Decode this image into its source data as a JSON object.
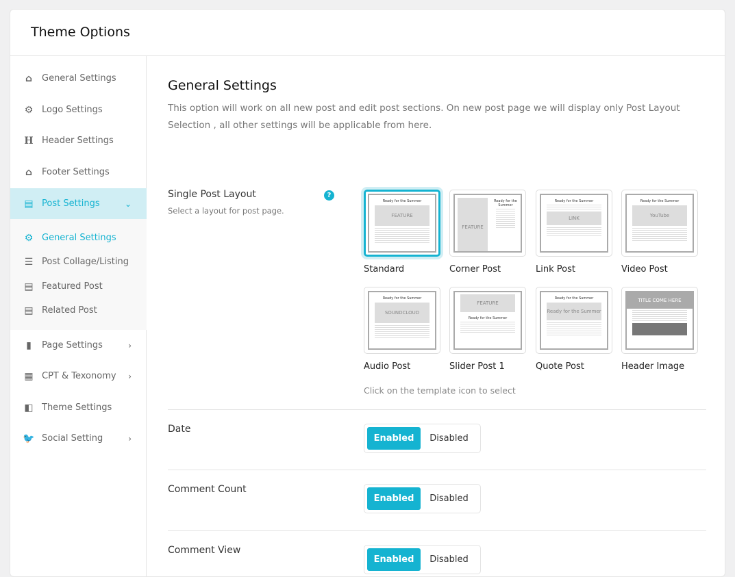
{
  "header": {
    "title": "Theme Options"
  },
  "sidebar": {
    "items": [
      {
        "label": "General Settings",
        "icon": "home-icon"
      },
      {
        "label": "Logo Settings",
        "icon": "cogs-icon"
      },
      {
        "label": "Header Settings",
        "icon": "heading-icon"
      },
      {
        "label": "Footer Settings",
        "icon": "home-icon"
      },
      {
        "label": "Post Settings",
        "icon": "newspaper-icon",
        "active": true,
        "expanded": true
      },
      {
        "label": "Page Settings",
        "icon": "file-icon"
      },
      {
        "label": "CPT & Texonomy",
        "icon": "qrcode-icon"
      },
      {
        "label": "Theme Settings",
        "icon": "swatchbook-icon"
      },
      {
        "label": "Social Setting",
        "icon": "twitter-icon"
      }
    ],
    "subitems": [
      {
        "label": "General Settings",
        "icon": "gear-icon",
        "current": true
      },
      {
        "label": "Post Collage/Listing",
        "icon": "list-icon"
      },
      {
        "label": "Featured Post",
        "icon": "newspaper-icon"
      },
      {
        "label": "Related Post",
        "icon": "newspaper-icon"
      }
    ]
  },
  "main": {
    "title": "General Settings",
    "description": "This option will work on all new post and edit post sections. On new post page we will display only Post Layout Selection , all other settings will be applicable from here.",
    "layout": {
      "label": "Single Post Layout",
      "sublabel": "Select a layout for post page.",
      "hint": "Click on the template icon to select",
      "preview": {
        "post_title": "Ready for the Summer",
        "feature": "FEATURE",
        "link": "LINK",
        "youtube": "YouTube",
        "soundcloud": "SOUNDCLOUD",
        "header_title": "TITLE COME HERE"
      },
      "options": [
        "Standard",
        "Corner Post",
        "Link Post",
        "Video Post",
        "Audio Post",
        "Slider Post 1",
        "Quote Post",
        "Header Image"
      ],
      "selected": "Standard"
    },
    "toggles": [
      {
        "label": "Date",
        "on": "Enabled",
        "off": "Disabled",
        "value": "Enabled"
      },
      {
        "label": "Comment Count",
        "on": "Enabled",
        "off": "Disabled",
        "value": "Enabled"
      },
      {
        "label": "Comment View",
        "on": "Enabled",
        "off": "Disabled",
        "value": "Enabled"
      }
    ]
  },
  "colors": {
    "accent": "#15b3d1",
    "active_bg": "#d0eef4"
  }
}
